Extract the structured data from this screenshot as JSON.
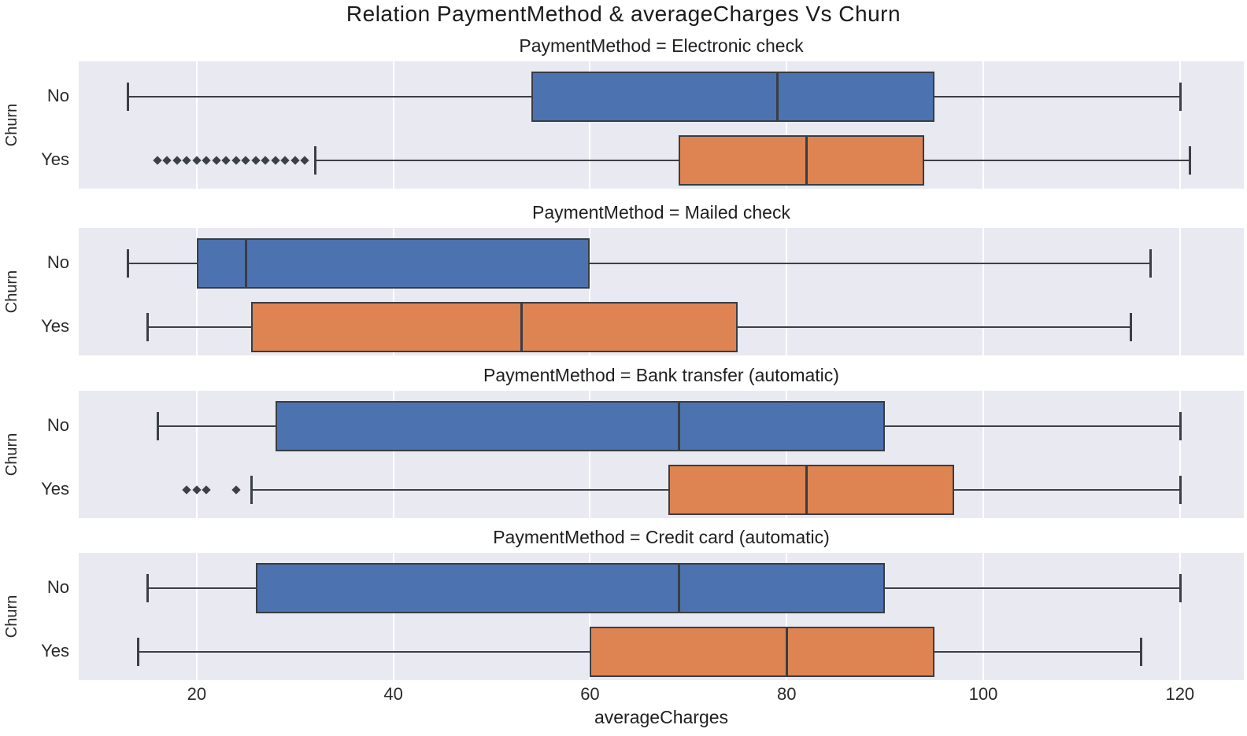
{
  "chart_data": {
    "type": "boxplot",
    "title": "Relation PaymentMethod & averageCharges Vs Churn",
    "xlabel": "averageCharges",
    "ylabel": "Churn",
    "x_ticks": [
      20,
      40,
      60,
      80,
      100,
      120
    ],
    "xlim": [
      8,
      126.5
    ],
    "categories": [
      "No",
      "Yes"
    ],
    "colors": {
      "No": "#4C72B0",
      "Yes": "#DD8452"
    },
    "grid": true,
    "panel_background": "#e9eaf1",
    "facets": [
      {
        "title": "PaymentMethod = Electronic check",
        "boxes": [
          {
            "churn": "No",
            "whislo": 13,
            "q1": 54,
            "med": 79,
            "q3": 95,
            "whishi": 120,
            "fliers": []
          },
          {
            "churn": "Yes",
            "whislo": 32,
            "q1": 69,
            "med": 82,
            "q3": 94,
            "whishi": 121,
            "fliers": [
              16,
              17,
              18,
              19,
              20,
              21,
              22,
              23,
              24,
              25,
              26,
              27,
              28,
              29,
              30,
              31
            ]
          }
        ]
      },
      {
        "title": "PaymentMethod = Mailed check",
        "boxes": [
          {
            "churn": "No",
            "whislo": 13,
            "q1": 20,
            "med": 25,
            "q3": 60,
            "whishi": 117,
            "fliers": []
          },
          {
            "churn": "Yes",
            "whislo": 15,
            "q1": 25.5,
            "med": 53,
            "q3": 75,
            "whishi": 115,
            "fliers": []
          }
        ]
      },
      {
        "title": "PaymentMethod = Bank transfer (automatic)",
        "boxes": [
          {
            "churn": "No",
            "whislo": 16,
            "q1": 28,
            "med": 69,
            "q3": 90,
            "whishi": 120,
            "fliers": []
          },
          {
            "churn": "Yes",
            "whislo": 25.5,
            "q1": 68,
            "med": 82,
            "q3": 97,
            "whishi": 120,
            "fliers": [
              19,
              20,
              21,
              24
            ]
          }
        ]
      },
      {
        "title": "PaymentMethod = Credit card (automatic)",
        "boxes": [
          {
            "churn": "No",
            "whislo": 15,
            "q1": 26,
            "med": 69,
            "q3": 90,
            "whishi": 120,
            "fliers": []
          },
          {
            "churn": "Yes",
            "whislo": 14,
            "q1": 60,
            "med": 80,
            "q3": 95,
            "whishi": 116,
            "fliers": []
          }
        ]
      }
    ]
  }
}
